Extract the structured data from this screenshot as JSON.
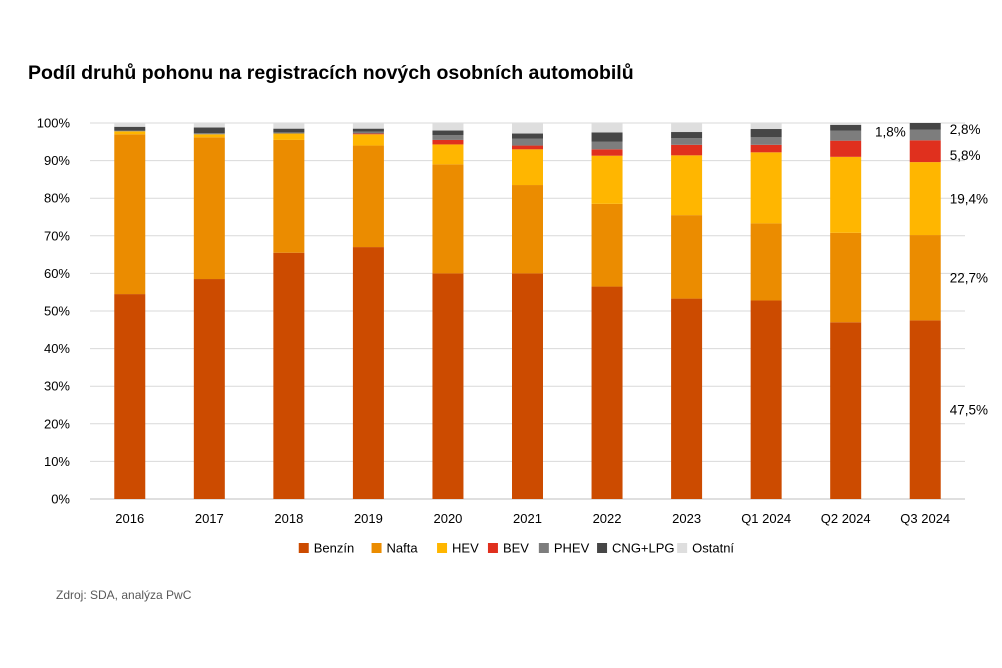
{
  "source": "Zdroj: SDA, analýza PwC",
  "chart_data": {
    "type": "bar",
    "stacked": true,
    "title": "Podíl druhů pohonu na registracích nových osobních automobilů",
    "xlabel": "",
    "ylabel": "",
    "ylim": [
      0,
      100
    ],
    "yticks": [
      "0%",
      "10%",
      "20%",
      "30%",
      "40%",
      "50%",
      "60%",
      "70%",
      "80%",
      "90%",
      "100%"
    ],
    "grid": true,
    "legend_position": "bottom",
    "categories": [
      "2016",
      "2017",
      "2018",
      "2019",
      "2020",
      "2021",
      "2022",
      "2023",
      "Q1 2024",
      "Q2 2024",
      "Q3 2024"
    ],
    "series": [
      {
        "name": "Benzín",
        "color": "#CC4B00",
        "values": [
          54.5,
          58.5,
          65.5,
          67.0,
          60.0,
          60.0,
          56.5,
          53.3,
          52.8,
          47.0,
          47.5
        ]
      },
      {
        "name": "Nafta",
        "color": "#EB8C00",
        "values": [
          42.5,
          37.7,
          30.0,
          27.0,
          29.0,
          23.5,
          22.0,
          22.2,
          20.5,
          23.8,
          22.7
        ]
      },
      {
        "name": "HEV",
        "color": "#FFB600",
        "values": [
          0.8,
          0.8,
          1.7,
          3.0,
          5.3,
          9.5,
          12.8,
          15.9,
          18.9,
          20.2,
          19.4
        ]
      },
      {
        "name": "BEV",
        "color": "#E0301E",
        "values": [
          0.0,
          0.0,
          0.0,
          0.2,
          1.2,
          1.0,
          1.7,
          2.8,
          2.0,
          4.3,
          5.8
        ]
      },
      {
        "name": "PHEV",
        "color": "#7D7D7D",
        "values": [
          0.2,
          0.3,
          0.3,
          0.5,
          1.3,
          1.8,
          2.0,
          1.8,
          2.0,
          2.7,
          2.8
        ]
      },
      {
        "name": "CNG+LPG",
        "color": "#464646",
        "values": [
          1.0,
          1.5,
          1.0,
          0.8,
          1.2,
          1.4,
          2.5,
          1.6,
          2.2,
          1.5,
          1.8
        ]
      },
      {
        "name": "Ostatní",
        "color": "#DEDEDE",
        "values": [
          1.0,
          1.2,
          1.5,
          1.5,
          2.0,
          2.8,
          2.5,
          2.4,
          1.6,
          0.5,
          0.0
        ]
      }
    ],
    "annotations": [
      {
        "category": "Q3 2024",
        "series": "Benzín",
        "text": "47,5%",
        "side": "right"
      },
      {
        "category": "Q3 2024",
        "series": "Nafta",
        "text": "22,7%",
        "side": "right"
      },
      {
        "category": "Q3 2024",
        "series": "HEV",
        "text": "19,4%",
        "side": "right"
      },
      {
        "category": "Q3 2024",
        "series": "BEV",
        "text": "5,8%",
        "side": "right"
      },
      {
        "category": "Q3 2024",
        "series": "PHEV",
        "text": "2,8%",
        "side": "right"
      },
      {
        "category": "Q3 2024",
        "series": "CNG+LPG",
        "text": "1,8%",
        "side": "left"
      }
    ]
  }
}
